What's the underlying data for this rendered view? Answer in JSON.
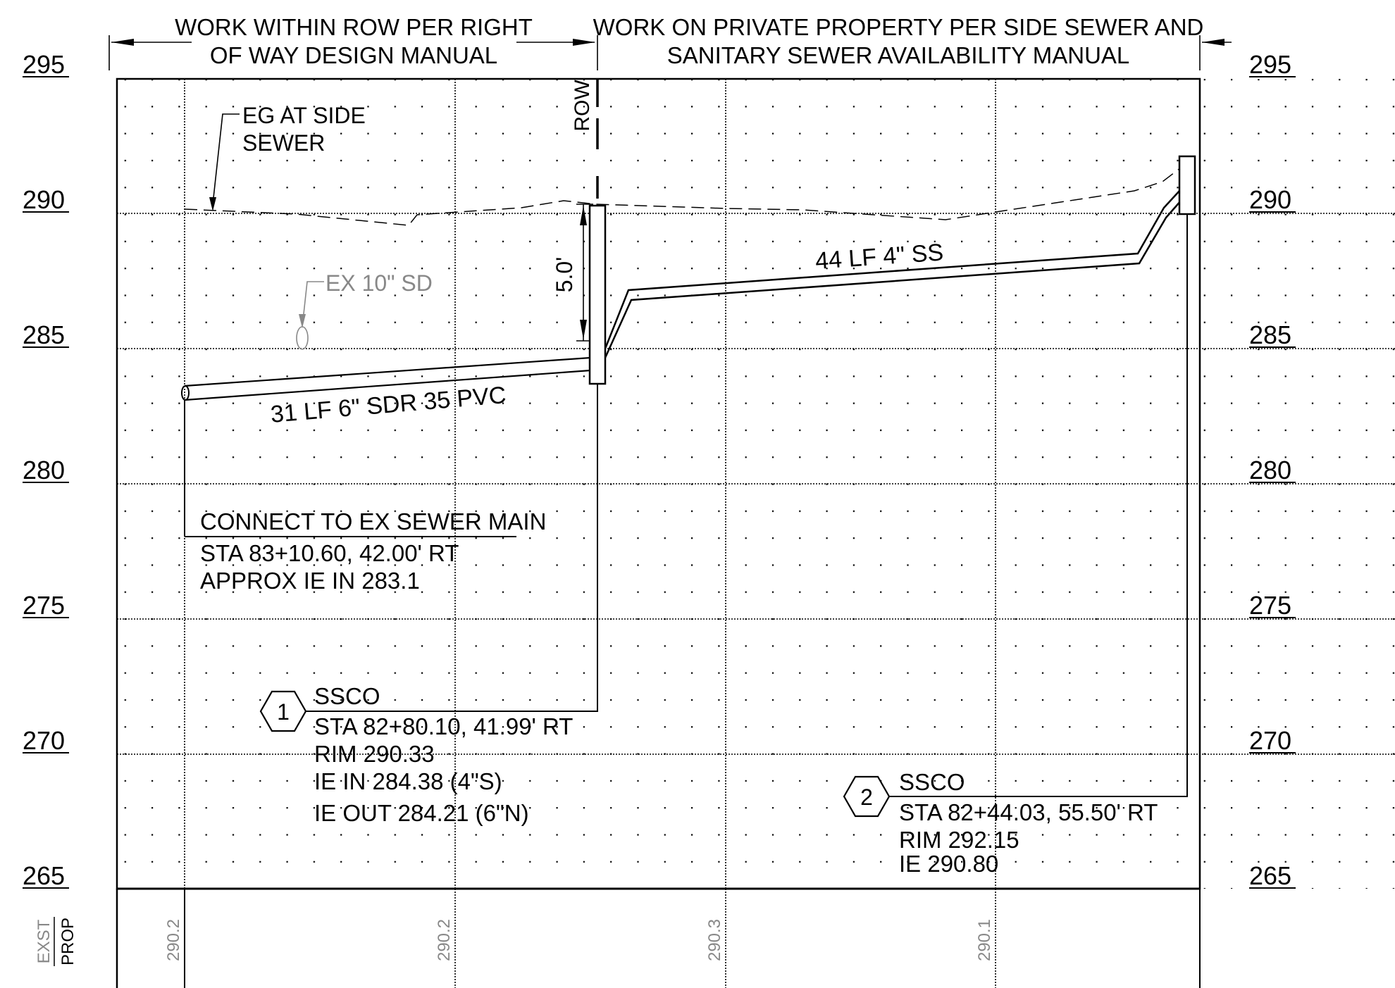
{
  "header": {
    "left_line1": "WORK WITHIN ROW PER RIGHT",
    "left_line2": "OF WAY DESIGN MANUAL",
    "right_line1": "WORK ON PRIVATE PROPERTY PER SIDE SEWER AND",
    "right_line2": "SANITARY SEWER AVAILABILITY MANUAL"
  },
  "elevations": [
    "295",
    "290",
    "285",
    "280",
    "275",
    "270",
    "265"
  ],
  "row_label": "ROW",
  "labels": {
    "eg": [
      "EG AT SIDE",
      "SEWER"
    ],
    "ex_sd": "EX 10\" SD",
    "depth": "5.0'",
    "pipe_main": "31 LF 6\" SDR 35 PVC",
    "pipe_side": "44 LF 4\" SS"
  },
  "connect_note": {
    "title": "CONNECT TO EX SEWER MAIN",
    "line1": "STA 83+10.60, 42.00' RT",
    "line2": "APPROX IE IN 283.1"
  },
  "callouts": [
    {
      "number": "1",
      "title": "SSCO",
      "lines": [
        "STA 82+80.10, 41.99' RT",
        "RIM 290.33",
        "IE IN 284.38 (4\"S)",
        "IE OUT 284.21 (6\"N)"
      ]
    },
    {
      "number": "2",
      "title": "SSCO",
      "lines": [
        "STA 82+44.03, 55.50' RT",
        "RIM 292.15",
        "IE 290.80"
      ]
    }
  ],
  "footer": {
    "legend_exist": "EXST",
    "legend_prop": "PROP",
    "grade_values": [
      "290.2",
      "290.2",
      "290.3",
      "290.1"
    ]
  },
  "colors": {
    "ink": "#000000",
    "faded": "#888888"
  }
}
